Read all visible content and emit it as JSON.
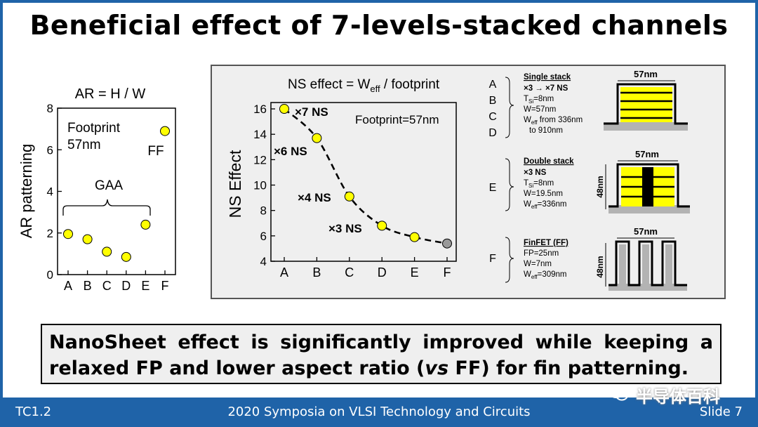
{
  "title": "Beneficial effect of 7-levels-stacked channels",
  "colors": {
    "accent": "#1f63a8",
    "marker_yellow": "#ffff00",
    "marker_gray": "#999999",
    "panel_bg": "#efefef",
    "fin": "#b3b3b3"
  },
  "chart_data": [
    {
      "type": "scatter",
      "title": "AR = H / W",
      "xlabel": "",
      "ylabel": "AR patterning",
      "categories": [
        "A",
        "B",
        "C",
        "D",
        "E",
        "F"
      ],
      "values": [
        1.95,
        1.7,
        1.1,
        0.85,
        2.4,
        6.9
      ],
      "ylim": [
        0,
        8
      ],
      "yticks": [
        "0",
        "2",
        "4",
        "6",
        "8"
      ],
      "annotations": {
        "footprint_line1": "Footprint",
        "footprint_line2": "57nm",
        "gaa": "GAA",
        "ff": "FF"
      },
      "grid": false
    },
    {
      "type": "scatter",
      "title": "NS effect = W",
      "title_sub": "eff",
      "title_tail": " / footprint",
      "xlabel": "",
      "ylabel": "NS Effect",
      "categories": [
        "A",
        "B",
        "C",
        "D",
        "E",
        "F"
      ],
      "values": [
        16.0,
        13.7,
        9.1,
        6.8,
        5.9,
        5.4
      ],
      "ylim": [
        4,
        16.5
      ],
      "yticks": [
        "4",
        "6",
        "8",
        "10",
        "12",
        "14",
        "16"
      ],
      "trend": "dashed",
      "labels": [
        "×7 NS",
        "×6 NS",
        "×4 NS",
        "×3 NS"
      ],
      "annotation": "Footprint=57nm",
      "grid": false
    }
  ],
  "legend": {
    "letters_single": [
      "A",
      "B",
      "C",
      "D"
    ],
    "single": {
      "heading": "Single stack",
      "line1": "×3 → ×7 NS",
      "tsi": "T",
      "tsi_sub": "Si",
      "tsi_val": "=8nm",
      "w": "W=57nm",
      "weff": "W",
      "weff_sub": "eff",
      "weff_val": " from 336nm",
      "weff_val2": "to 910nm",
      "dim": "57nm"
    },
    "letter_double": "E",
    "double": {
      "heading": "Double stack",
      "line1": "×3 NS",
      "tsi": "T",
      "tsi_sub": "Si",
      "tsi_val": "=8nm",
      "w": "W=19.5nm",
      "weff": "W",
      "weff_sub": "eff",
      "weff_val": "=336nm",
      "dim": "57nm",
      "height": "48nm"
    },
    "letter_finfet": "F",
    "finfet": {
      "heading": "FinFET (FF)",
      "fp": "FP=25nm",
      "w": "W=7nm",
      "weff": "W",
      "weff_sub": "eff",
      "weff_val": "=309nm",
      "dim": "57nm",
      "height": "48nm"
    }
  },
  "callout": {
    "text1": "NanoSheet effect is significantly improved while keeping a relaxed FP and lower aspect ratio (",
    "vs": "vs",
    "text2": " FF) for fin patterning."
  },
  "footer": {
    "left": "TC1.2",
    "center": "2020 Symposia on VLSI Technology and Circuits",
    "right": "Slide 7"
  },
  "watermark": "半导体百科"
}
